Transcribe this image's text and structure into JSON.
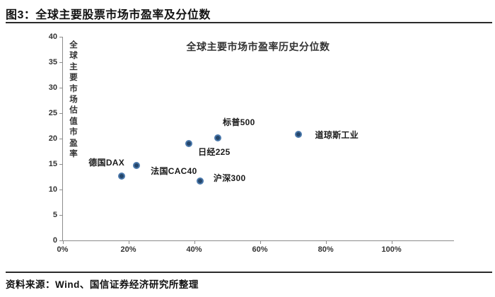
{
  "figure": {
    "title": "图3：全球主要股票市场市盈率及分位数",
    "source": "资料来源：Wind、国信证券经济研究所整理"
  },
  "chart_data": {
    "type": "scatter",
    "title": "全球主要市场市盈率历史分位数",
    "ylabel": "全球主要市场估值市盈率",
    "xlabel": "",
    "xlim": [
      0,
      119
    ],
    "ylim": [
      0,
      40
    ],
    "x_ticks": [
      {
        "value": 0,
        "label": "0%"
      },
      {
        "value": 20,
        "label": "20%"
      },
      {
        "value": 40,
        "label": "40%"
      },
      {
        "value": 60,
        "label": "60%"
      },
      {
        "value": 80,
        "label": "80%"
      },
      {
        "value": 100,
        "label": "100%"
      }
    ],
    "y_ticks": [
      {
        "value": 0,
        "label": "0"
      },
      {
        "value": 5,
        "label": "5"
      },
      {
        "value": 10,
        "label": "10"
      },
      {
        "value": 15,
        "label": "15"
      },
      {
        "value": 20,
        "label": "20"
      },
      {
        "value": 25,
        "label": "25"
      },
      {
        "value": 30,
        "label": "30"
      },
      {
        "value": 35,
        "label": "35"
      },
      {
        "value": 40,
        "label": "40"
      }
    ],
    "grid": false,
    "legend": false,
    "marker": {
      "fill": "#24466b",
      "border": "#4a78ab",
      "radius": 5
    },
    "points": [
      {
        "name": "德国DAX",
        "x": 18.0,
        "y": 12.7,
        "label_offset": [
          -47,
          -25
        ]
      },
      {
        "name": "法国CAC40",
        "x": 22.5,
        "y": 14.7,
        "label_offset": [
          20,
          2
        ]
      },
      {
        "name": "日经225",
        "x": 38.4,
        "y": 19.0,
        "label_offset": [
          13,
          6
        ]
      },
      {
        "name": "沪深300",
        "x": 41.8,
        "y": 11.7,
        "label_offset": [
          19,
          -10
        ]
      },
      {
        "name": "标普500",
        "x": 47.2,
        "y": 20.2,
        "label_offset": [
          7,
          -28
        ]
      },
      {
        "name": "道琼斯工业",
        "x": 71.6,
        "y": 20.9,
        "label_offset": [
          24,
          -5
        ]
      }
    ]
  }
}
